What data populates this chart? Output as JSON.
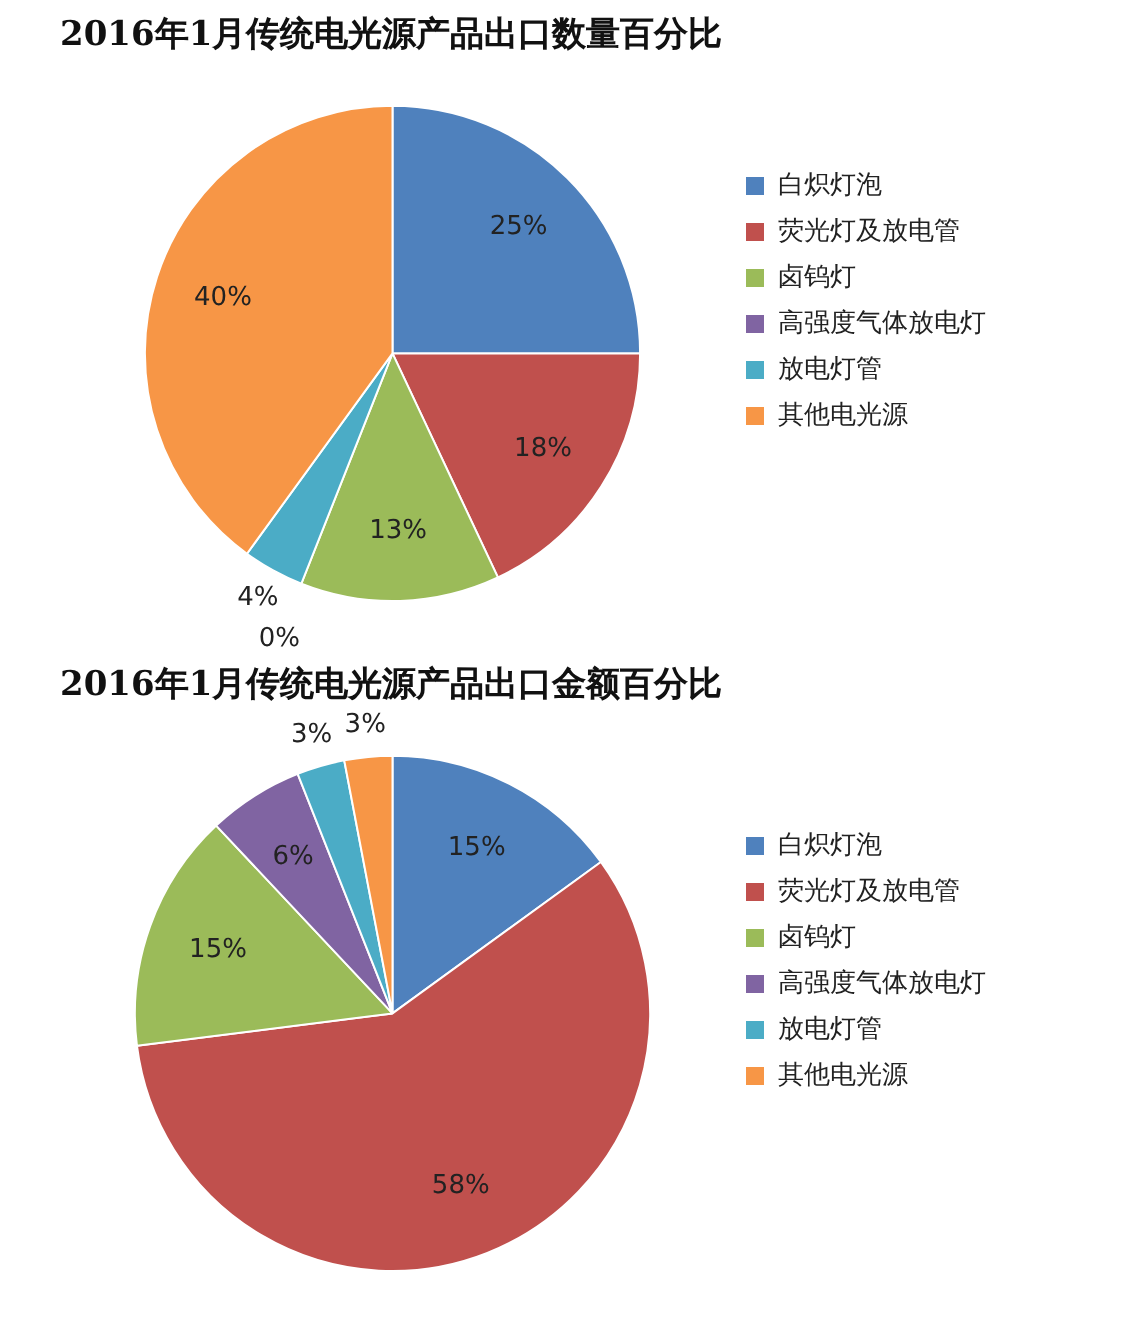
{
  "chart_data": [
    {
      "type": "pie",
      "title": "2016年1月传统电光源产品出口数量百分比",
      "categories": [
        "白炽灯泡",
        "荧光灯及放电管",
        "卤钨灯",
        "高强度气体放电灯",
        "放电灯管",
        "其他电光源"
      ],
      "values": [
        25,
        18,
        13,
        0,
        4,
        40
      ],
      "value_labels": [
        "25%",
        "18%",
        "13%",
        "0%",
        "4%",
        "40%"
      ],
      "colors": [
        "#4f81bd",
        "#c0504d",
        "#9bbb59",
        "#8064a2",
        "#4bacc6",
        "#f79646"
      ],
      "legend": "right"
    },
    {
      "type": "pie",
      "title": "2016年1月传统电光源产品出口金额百分比",
      "categories": [
        "白炽灯泡",
        "荧光灯及放电管",
        "卤钨灯",
        "高强度气体放电灯",
        "放电灯管",
        "其他电光源"
      ],
      "values": [
        15,
        58,
        15,
        6,
        3,
        3
      ],
      "value_labels": [
        "15%",
        "58%",
        "15%",
        "6%",
        "3%",
        "3%"
      ],
      "colors": [
        "#4f81bd",
        "#c0504d",
        "#9bbb59",
        "#8064a2",
        "#4bacc6",
        "#f79646"
      ],
      "legend": "right"
    }
  ]
}
